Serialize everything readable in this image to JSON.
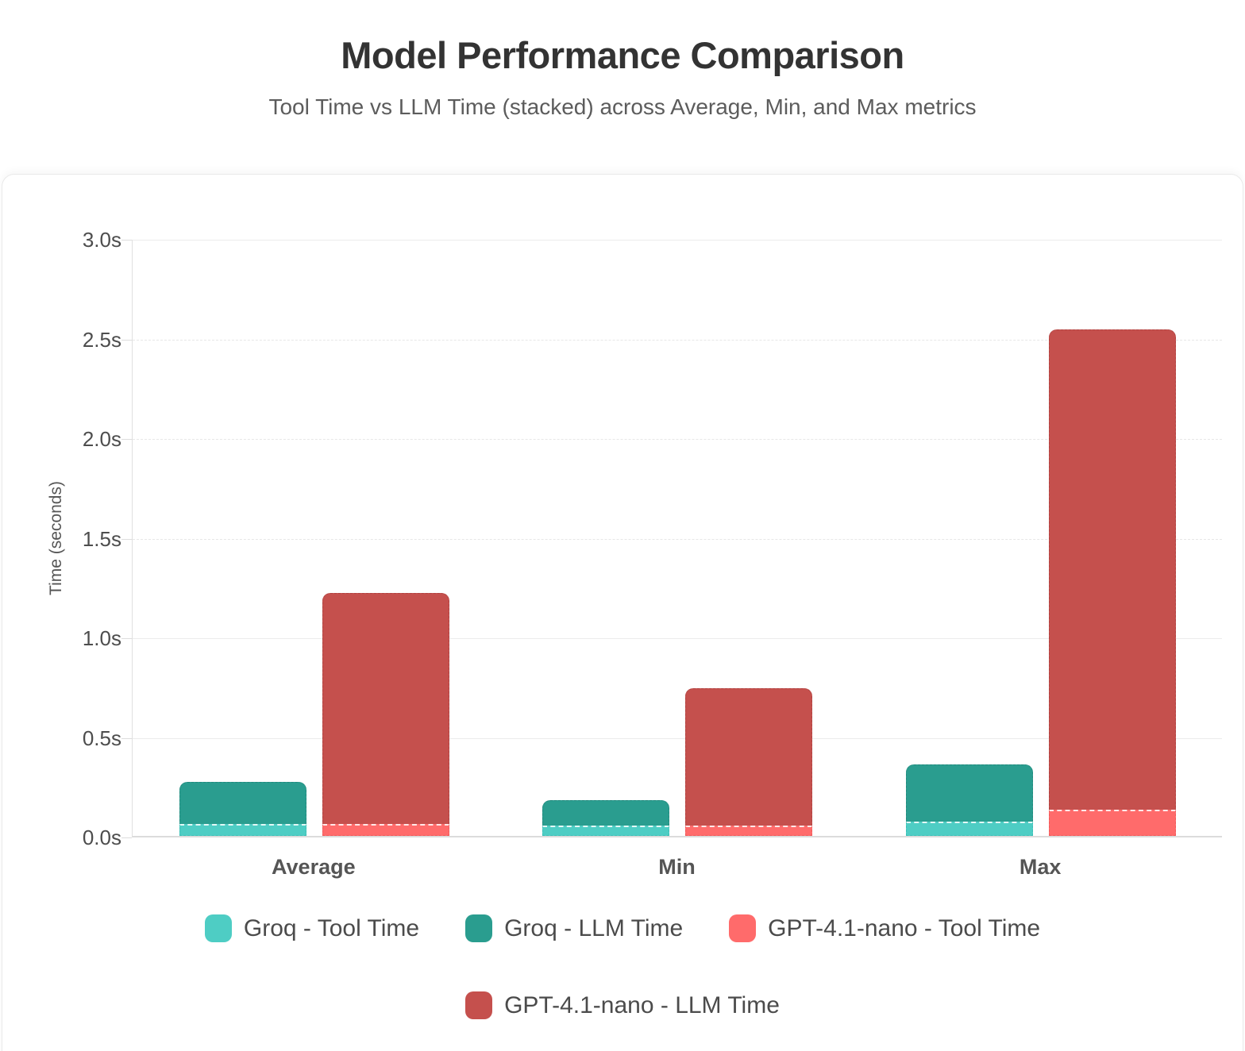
{
  "chart_data": {
    "type": "bar",
    "stacked": true,
    "title": "Model Performance Comparison",
    "subtitle": "Tool Time vs LLM Time (stacked) across Average, Min, and Max metrics",
    "ylabel": "Time (seconds)",
    "ylim": [
      0,
      3
    ],
    "yticks": [
      0,
      0.5,
      1,
      1.5,
      2,
      2.5,
      3
    ],
    "ytick_labels": [
      "0.0s",
      "0.5s",
      "1.0s",
      "1.5s",
      "2.0s",
      "2.5s",
      "3.0s"
    ],
    "categories": [
      "Average",
      "Min",
      "Max"
    ],
    "grid": true,
    "legend_position": "bottom",
    "series": [
      {
        "name": "Groq - Tool Time",
        "stack": "Groq",
        "role": "tool",
        "color": "#4ECDC4",
        "border": "#3bbfb6",
        "values": [
          0.06,
          0.05,
          0.07
        ]
      },
      {
        "name": "Groq - LLM Time",
        "stack": "Groq",
        "role": "llm",
        "color": "#2A9D8F",
        "border": "#23897d",
        "values": [
          0.21,
          0.13,
          0.29
        ]
      },
      {
        "name": "GPT-4.1-nano - Tool Time",
        "stack": "GPT-4.1-nano",
        "role": "tool",
        "color": "#FF6B6B",
        "border": "#f05a5a",
        "values": [
          0.06,
          0.05,
          0.13
        ]
      },
      {
        "name": "GPT-4.1-nano - LLM Time",
        "stack": "GPT-4.1-nano",
        "role": "llm",
        "color": "#C5504D",
        "border": "#b04341",
        "values": [
          1.16,
          0.69,
          2.41
        ]
      }
    ],
    "stack_totals": {
      "Groq": [
        0.27,
        0.18,
        0.36
      ],
      "GPT-4.1-nano": [
        1.22,
        0.74,
        2.54
      ]
    }
  },
  "style_colors": {
    "axis_line": "#e0e0e0",
    "baseline": "#dcdcdc",
    "gridline": "#ececec",
    "tick_text": "#4d4d4d",
    "title_text": "#333333",
    "subtitle_text": "#5c5c5c",
    "segment_divider": "rgba(255,255,255,0.85)"
  }
}
